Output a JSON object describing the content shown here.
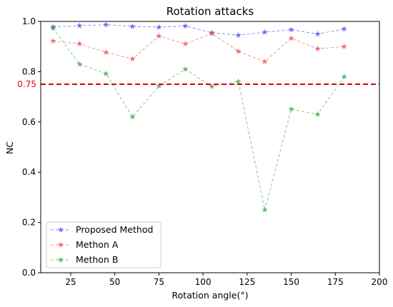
{
  "chart_data": {
    "type": "line",
    "title": "Rotation attacks",
    "xlabel": "Rotation angle(°)",
    "ylabel": "NC",
    "xlim": [
      8,
      200
    ],
    "ylim": [
      0,
      1.0
    ],
    "x_ticks": [
      25,
      50,
      75,
      100,
      125,
      150,
      175,
      200
    ],
    "y_ticks": [
      0.0,
      0.2,
      0.4,
      0.6,
      0.8,
      1.0
    ],
    "x": [
      15,
      30,
      45,
      60,
      75,
      90,
      105,
      120,
      135,
      150,
      165,
      180
    ],
    "series": [
      {
        "name": "Proposed Method",
        "color": "#4646f0",
        "values": [
          0.978,
          0.983,
          0.987,
          0.98,
          0.977,
          0.982,
          0.955,
          0.945,
          0.957,
          0.967,
          0.95,
          0.97
        ]
      },
      {
        "name": "Methon A",
        "color": "#f04646",
        "values": [
          0.922,
          0.911,
          0.877,
          0.851,
          0.942,
          0.911,
          0.952,
          0.881,
          0.84,
          0.933,
          0.891,
          0.9
        ]
      },
      {
        "name": "Methon B",
        "color": "#3ca03c",
        "values": [
          0.973,
          0.83,
          0.792,
          0.62,
          0.743,
          0.81,
          0.741,
          0.761,
          0.25,
          0.651,
          0.63,
          0.78
        ]
      }
    ],
    "reference_line": {
      "y": 0.75,
      "label": "0.75",
      "color": "#e00000"
    },
    "legend": {
      "position": "bottom-left"
    },
    "grid": false,
    "marker": "star",
    "line_style": "dashed"
  }
}
